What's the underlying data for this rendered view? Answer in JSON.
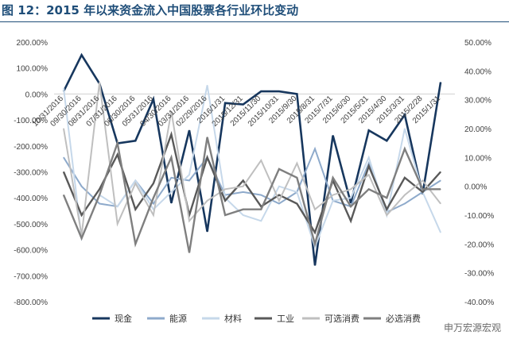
{
  "title": "图 12：2015 年以来资金流入中国股票各行业环比变动",
  "watermark": "申万宏源宏观",
  "chart_data": {
    "type": "line",
    "categories": [
      "10/31/2016",
      "09/30/2016",
      "08/31/2016",
      "07/31/2016",
      "06/30/2016",
      "05/31/2016",
      "04/30/2016",
      "03/31/2016",
      "02/29/2016",
      "2016/1/31",
      "2015/12/31",
      "2015/11/30",
      "2015/10/31",
      "2015/9/30",
      "2015/8/31",
      "2015/7/31",
      "2015/6/30",
      "2015/5/31",
      "2015/4/30",
      "2015/3/31",
      "2015/2/28",
      "2015/1/31"
    ],
    "y_left": {
      "ylim": [
        -800,
        200
      ],
      "ticks": [
        200,
        100,
        0,
        -100,
        -200,
        -300,
        -400,
        -500,
        -600,
        -700,
        -800
      ],
      "format": "percent"
    },
    "y_right": {
      "ylim": [
        -40,
        50
      ],
      "ticks": [
        50,
        40,
        30,
        20,
        10,
        0,
        -10,
        -20,
        -30,
        -40
      ],
      "format": "percent"
    },
    "grid": false,
    "legend_position": "bottom",
    "series": [
      {
        "name": "现金",
        "axis": "left",
        "color": "#17375e",
        "width": 2.6,
        "values": [
          10,
          150,
          40,
          -190,
          -180,
          -20,
          -420,
          -140,
          -530,
          -35,
          -40,
          10,
          10,
          0,
          -660,
          -160,
          -420,
          -140,
          -180,
          -80,
          -385,
          45
        ]
      },
      {
        "name": "能源",
        "axis": "right",
        "color": "#8eaacb",
        "width": 2,
        "values": [
          10,
          0,
          -6,
          -7,
          2,
          -6,
          3,
          2,
          10,
          -3,
          -2,
          -3,
          -6,
          -2,
          13,
          -5,
          -7,
          8,
          -9,
          -6,
          -2,
          2
        ]
      },
      {
        "name": "材料",
        "axis": "right",
        "color": "#c6d8ea",
        "width": 2,
        "values": [
          34,
          -18,
          -3,
          -7,
          2,
          -8,
          -2,
          4,
          35,
          -4,
          -10,
          -12,
          0,
          -2,
          -21,
          -5,
          -4,
          10,
          -10,
          20,
          -2,
          -16
        ]
      },
      {
        "name": "工业",
        "axis": "right",
        "color": "#595959",
        "width": 2.4,
        "values": [
          5,
          -10,
          -1,
          11,
          -8,
          1,
          18,
          -10,
          10,
          -5,
          2,
          -7,
          -3,
          -6,
          -16,
          2,
          -12,
          7,
          -8,
          3,
          -2,
          5
        ]
      },
      {
        "name": "可选消费",
        "axis": "right",
        "color": "#bfbfbf",
        "width": 2,
        "values": [
          20,
          -17,
          36,
          -13,
          1,
          -10,
          26,
          -12,
          -5,
          -1,
          0,
          9,
          -5,
          8,
          -8,
          -3,
          -1,
          4,
          -10,
          -3,
          2,
          -6
        ]
      },
      {
        "name": "必选消费",
        "axis": "right",
        "color": "#7f7f7f",
        "width": 2.4,
        "values": [
          -3,
          -18,
          -3,
          15,
          -20,
          -4,
          10,
          -23,
          17,
          -10,
          -8,
          -8,
          6,
          3,
          -20,
          3,
          -7,
          -1,
          -4,
          13,
          -1,
          -1
        ]
      }
    ]
  }
}
